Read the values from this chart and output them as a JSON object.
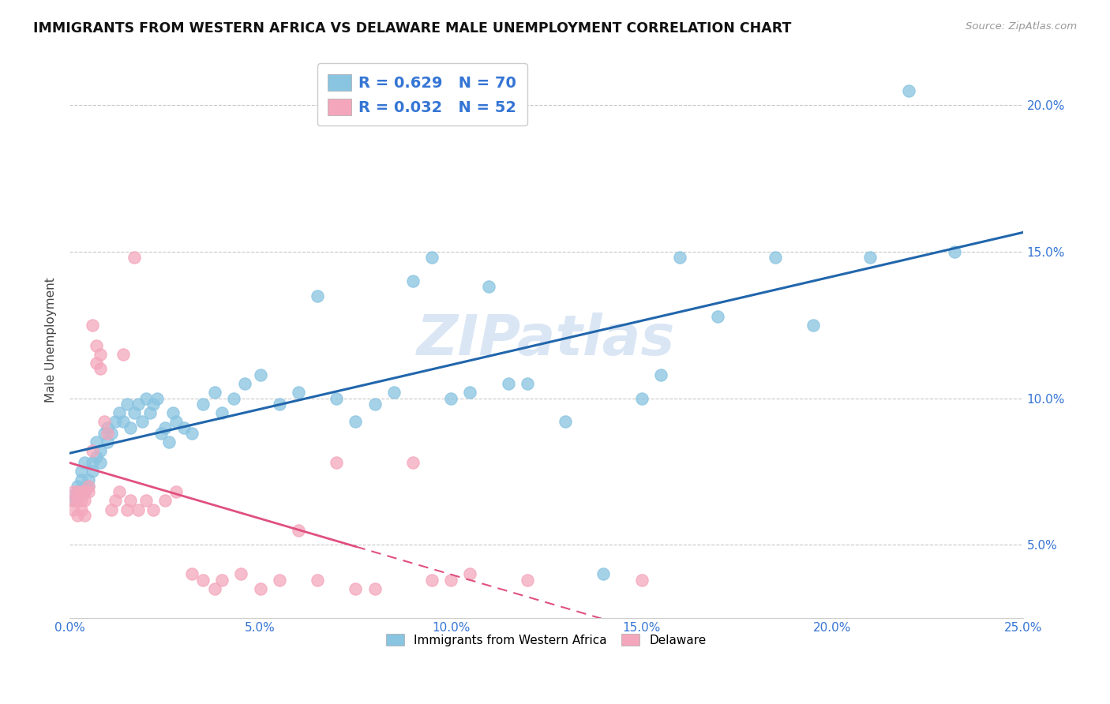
{
  "title": "IMMIGRANTS FROM WESTERN AFRICA VS DELAWARE MALE UNEMPLOYMENT CORRELATION CHART",
  "source": "Source: ZipAtlas.com",
  "ylabel": "Male Unemployment",
  "xlim": [
    0.0,
    0.25
  ],
  "ylim": [
    0.025,
    0.215
  ],
  "yticks": [
    0.05,
    0.1,
    0.15,
    0.2
  ],
  "xticks": [
    0.0,
    0.05,
    0.1,
    0.15,
    0.2,
    0.25
  ],
  "blue_color": "#89c4e1",
  "pink_color": "#f4a7bc",
  "line_blue": "#2166ac",
  "line_pink": "#e05080",
  "text_color": "#3575d4",
  "legend_label1": "R = 0.629   N = 70",
  "legend_label2": "R = 0.032   N = 52",
  "bottom_label1": "Immigrants from Western Africa",
  "bottom_label2": "Delaware",
  "watermark": "ZIPatlas",
  "blue_R": 0.629,
  "pink_R": 0.032,
  "blue_scatter_x": [
    0.001,
    0.001,
    0.002,
    0.002,
    0.003,
    0.003,
    0.004,
    0.004,
    0.005,
    0.005,
    0.006,
    0.006,
    0.007,
    0.007,
    0.008,
    0.008,
    0.009,
    0.01,
    0.01,
    0.011,
    0.012,
    0.013,
    0.014,
    0.015,
    0.016,
    0.017,
    0.018,
    0.019,
    0.02,
    0.021,
    0.022,
    0.023,
    0.024,
    0.025,
    0.026,
    0.027,
    0.028,
    0.03,
    0.032,
    0.035,
    0.038,
    0.04,
    0.043,
    0.046,
    0.05,
    0.055,
    0.06,
    0.065,
    0.07,
    0.075,
    0.08,
    0.085,
    0.09,
    0.095,
    0.1,
    0.105,
    0.11,
    0.115,
    0.12,
    0.13,
    0.14,
    0.15,
    0.155,
    0.16,
    0.17,
    0.185,
    0.195,
    0.21,
    0.22,
    0.232
  ],
  "blue_scatter_y": [
    0.065,
    0.067,
    0.07,
    0.068,
    0.072,
    0.075,
    0.068,
    0.078,
    0.072,
    0.07,
    0.075,
    0.078,
    0.08,
    0.085,
    0.078,
    0.082,
    0.088,
    0.085,
    0.09,
    0.088,
    0.092,
    0.095,
    0.092,
    0.098,
    0.09,
    0.095,
    0.098,
    0.092,
    0.1,
    0.095,
    0.098,
    0.1,
    0.088,
    0.09,
    0.085,
    0.095,
    0.092,
    0.09,
    0.088,
    0.098,
    0.102,
    0.095,
    0.1,
    0.105,
    0.108,
    0.098,
    0.102,
    0.135,
    0.1,
    0.092,
    0.098,
    0.102,
    0.14,
    0.148,
    0.1,
    0.102,
    0.138,
    0.105,
    0.105,
    0.092,
    0.04,
    0.1,
    0.108,
    0.148,
    0.128,
    0.148,
    0.125,
    0.148,
    0.205,
    0.15
  ],
  "pink_scatter_x": [
    0.001,
    0.001,
    0.001,
    0.002,
    0.002,
    0.002,
    0.003,
    0.003,
    0.003,
    0.004,
    0.004,
    0.004,
    0.005,
    0.005,
    0.006,
    0.006,
    0.007,
    0.007,
    0.008,
    0.008,
    0.009,
    0.01,
    0.011,
    0.012,
    0.013,
    0.014,
    0.015,
    0.016,
    0.017,
    0.018,
    0.02,
    0.022,
    0.025,
    0.028,
    0.032,
    0.035,
    0.038,
    0.04,
    0.045,
    0.05,
    0.055,
    0.06,
    0.065,
    0.07,
    0.075,
    0.08,
    0.09,
    0.095,
    0.1,
    0.105,
    0.12,
    0.15
  ],
  "pink_scatter_y": [
    0.065,
    0.062,
    0.068,
    0.065,
    0.068,
    0.06,
    0.062,
    0.065,
    0.068,
    0.065,
    0.068,
    0.06,
    0.07,
    0.068,
    0.125,
    0.082,
    0.112,
    0.118,
    0.11,
    0.115,
    0.092,
    0.088,
    0.062,
    0.065,
    0.068,
    0.115,
    0.062,
    0.065,
    0.148,
    0.062,
    0.065,
    0.062,
    0.065,
    0.068,
    0.04,
    0.038,
    0.035,
    0.038,
    0.04,
    0.035,
    0.038,
    0.055,
    0.038,
    0.078,
    0.035,
    0.035,
    0.078,
    0.038,
    0.038,
    0.04,
    0.038,
    0.038
  ]
}
